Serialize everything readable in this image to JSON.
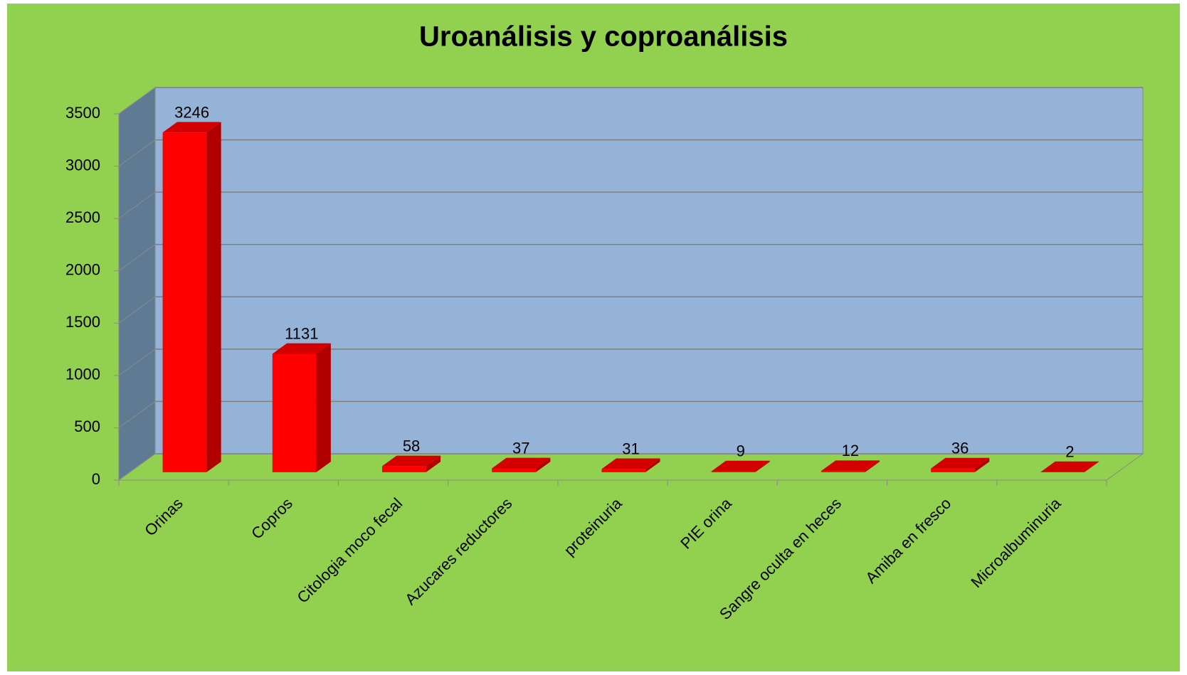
{
  "chart_data": {
    "type": "bar3d",
    "title": "Uroanálisis y coproanálisis",
    "categories": [
      "Orinas",
      "Copros",
      "Citologia moco fecal",
      "Azucares reductores",
      "proteinuria",
      "PIE orina",
      "Sangre oculta en heces",
      "Amiba en fresco",
      "Microalbuminuria"
    ],
    "values": [
      3246,
      1131,
      58,
      37,
      31,
      9,
      12,
      36,
      2
    ],
    "color": "#ff0000",
    "ylim": [
      0,
      3500
    ],
    "yticks": [
      0,
      500,
      1000,
      1500,
      2000,
      2500,
      3000,
      3500
    ],
    "grid": true
  }
}
